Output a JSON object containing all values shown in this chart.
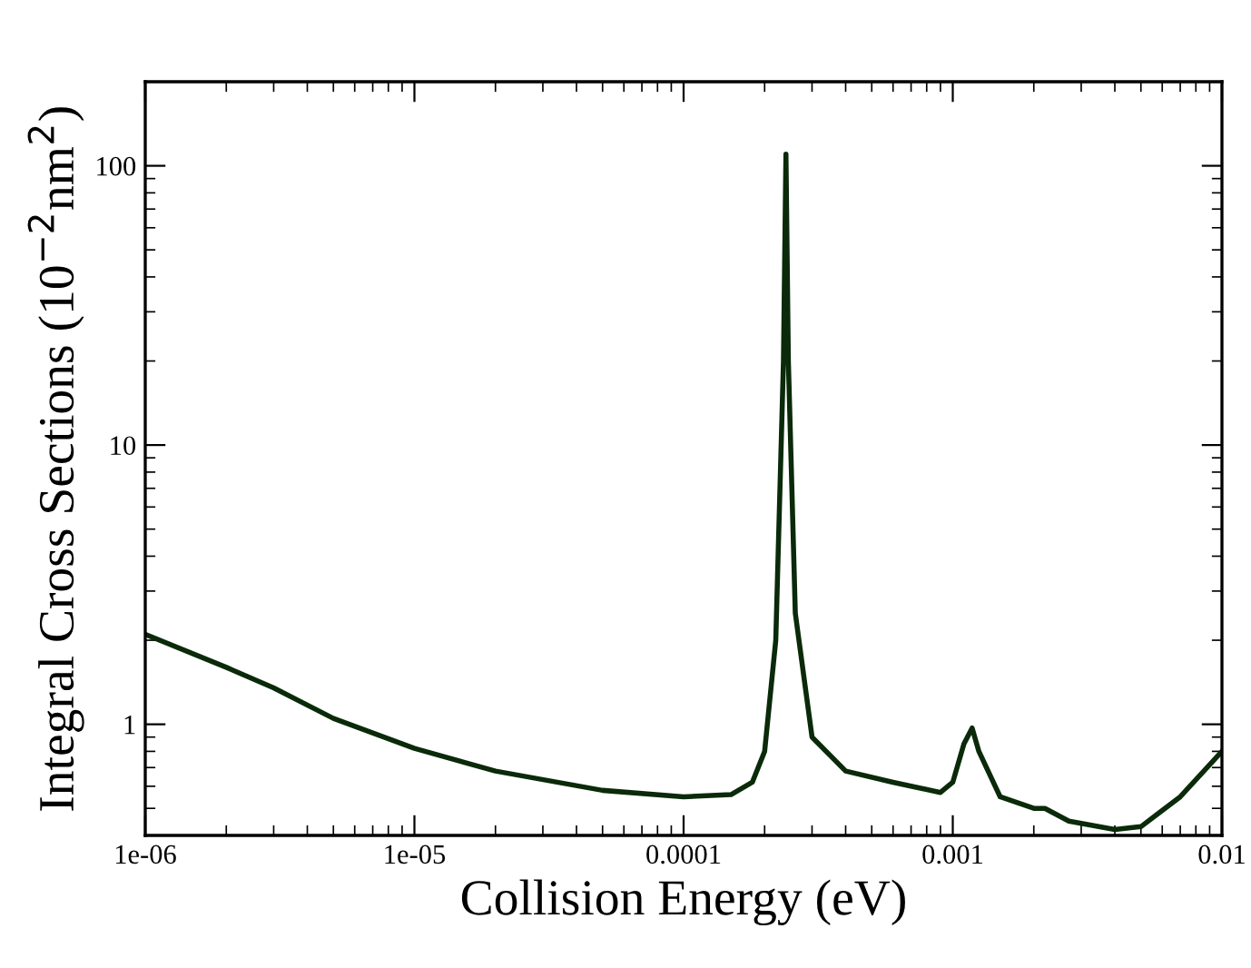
{
  "chart_data": {
    "type": "line",
    "xlabel": "Collision Energy (eV)",
    "ylabel": "Integral Cross Sections (10$^{−2}$nm$^{2}$)",
    "log": "xy",
    "grid": false,
    "marker": "none",
    "line_style": "solid",
    "xlim": [
      1e-06,
      0.01
    ],
    "ylim": [
      0.4,
      200
    ],
    "xticks": [
      {
        "value": 1e-06,
        "label": "1e-06"
      },
      {
        "value": 1e-05,
        "label": "1e-05"
      },
      0.0001,
      0.001,
      0.01
    ],
    "yticks": [
      1,
      10,
      100
    ],
    "x": [
      1e-06,
      2e-06,
      3e-06,
      5e-06,
      1e-05,
      2e-05,
      5e-05,
      0.0001,
      0.00015,
      0.00018,
      0.0002,
      0.00022,
      0.000235,
      0.00024,
      0.000245,
      0.00026,
      0.0003,
      0.0004,
      0.0006,
      0.0009,
      0.001,
      0.0011,
      0.00118,
      0.00125,
      0.0015,
      0.002,
      0.0022,
      0.0027,
      0.004,
      0.005,
      0.007,
      0.01
    ],
    "series": [
      {
        "color": "#0a2a0a",
        "values": [
          2.1,
          1.6,
          1.35,
          1.05,
          0.82,
          0.68,
          0.58,
          0.55,
          0.56,
          0.62,
          0.8,
          2,
          20,
          110,
          20,
          2.5,
          0.9,
          0.68,
          0.62,
          0.57,
          0.62,
          0.85,
          0.97,
          0.8,
          0.55,
          0.5,
          0.5,
          0.45,
          0.42,
          0.43,
          0.55,
          0.8
        ]
      }
    ]
  }
}
